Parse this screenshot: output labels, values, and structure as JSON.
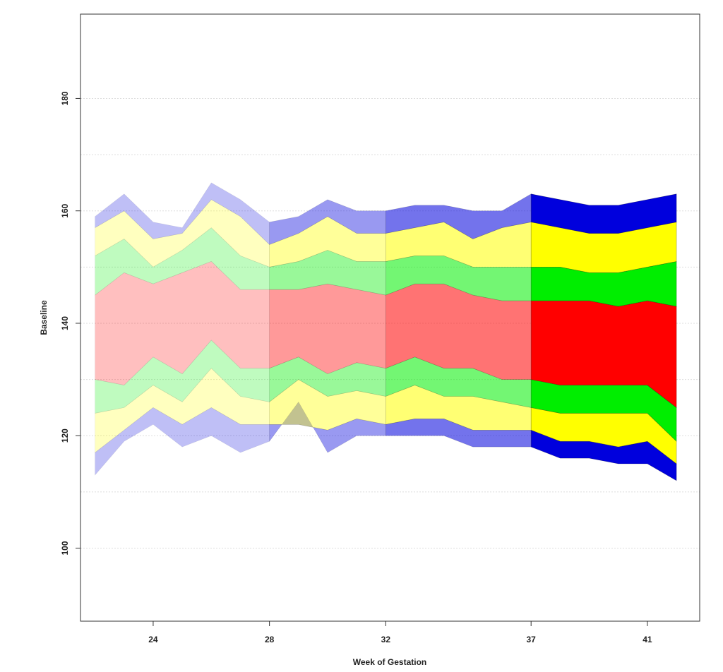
{
  "chart_data": {
    "type": "area",
    "title": "",
    "xlabel": "Week of Gestation",
    "ylabel": "Baseline",
    "xlim": [
      21.5,
      42.8
    ],
    "ylim": [
      87,
      195
    ],
    "x_ticks": [
      {
        "value": 24,
        "label": "24"
      },
      {
        "value": 28,
        "label": "28"
      },
      {
        "value": 32,
        "label": "32"
      },
      {
        "value": 37,
        "label": "37"
      },
      {
        "value": 41,
        "label": "41"
      }
    ],
    "y_ticks": [
      {
        "value": 100,
        "label": "100"
      },
      {
        "value": 120,
        "label": "120"
      },
      {
        "value": 140,
        "label": "140"
      },
      {
        "value": 160,
        "label": "160"
      },
      {
        "value": 180,
        "label": "180"
      }
    ],
    "grid_y": [
      100,
      110,
      120,
      130,
      140,
      150,
      160,
      170,
      180
    ],
    "grid": true,
    "x": [
      22,
      23,
      24,
      25,
      26,
      27,
      28,
      29,
      30,
      31,
      32,
      33,
      34,
      35,
      36,
      37,
      38,
      39,
      40,
      41,
      42
    ],
    "series": [
      {
        "values": [
          113,
          119,
          122,
          118,
          120,
          117,
          119,
          126,
          117,
          120,
          120,
          120,
          120,
          118,
          118,
          118,
          116,
          116,
          115,
          115,
          112
        ]
      },
      {
        "values": [
          117,
          121,
          125,
          122,
          125,
          122,
          122,
          122,
          121,
          123,
          122,
          123,
          123,
          121,
          121,
          121,
          119,
          119,
          118,
          119,
          115
        ]
      },
      {
        "values": [
          124,
          125,
          129,
          126,
          132,
          127,
          126,
          130,
          127,
          128,
          127,
          129,
          127,
          127,
          126,
          125,
          124,
          124,
          124,
          124,
          119
        ]
      },
      {
        "values": [
          130,
          129,
          134,
          131,
          137,
          132,
          132,
          134,
          131,
          133,
          132,
          134,
          132,
          132,
          130,
          130,
          129,
          129,
          129,
          129,
          125
        ]
      },
      {
        "values": [
          145,
          149,
          147,
          149,
          151,
          146,
          146,
          146,
          147,
          146,
          145,
          147,
          147,
          145,
          144,
          144,
          144,
          144,
          143,
          144,
          143
        ]
      },
      {
        "values": [
          152,
          155,
          150,
          153,
          157,
          152,
          150,
          151,
          153,
          151,
          151,
          152,
          152,
          150,
          150,
          150,
          150,
          149,
          149,
          150,
          151
        ]
      },
      {
        "values": [
          157,
          160,
          155,
          156,
          162,
          159,
          154,
          156,
          159,
          156,
          156,
          157,
          158,
          155,
          157,
          158,
          157,
          156,
          156,
          157,
          158
        ]
      },
      {
        "values": [
          159,
          163,
          158,
          157,
          165,
          162,
          158,
          159,
          162,
          160,
          160,
          161,
          161,
          160,
          160,
          163,
          162,
          161,
          161,
          162,
          163
        ]
      }
    ],
    "segments": [
      {
        "from": 22,
        "to": 28,
        "opacity": 0.25
      },
      {
        "from": 28,
        "to": 32,
        "opacity": 0.4
      },
      {
        "from": 32,
        "to": 37,
        "opacity": 0.55
      },
      {
        "from": 37,
        "to": 42,
        "opacity": 1.0
      }
    ],
    "band_colors": [
      "#0000dd",
      "#ffff00",
      "#00ee00",
      "#ff0000",
      "#00ee00",
      "#ffff00",
      "#0000dd"
    ]
  }
}
